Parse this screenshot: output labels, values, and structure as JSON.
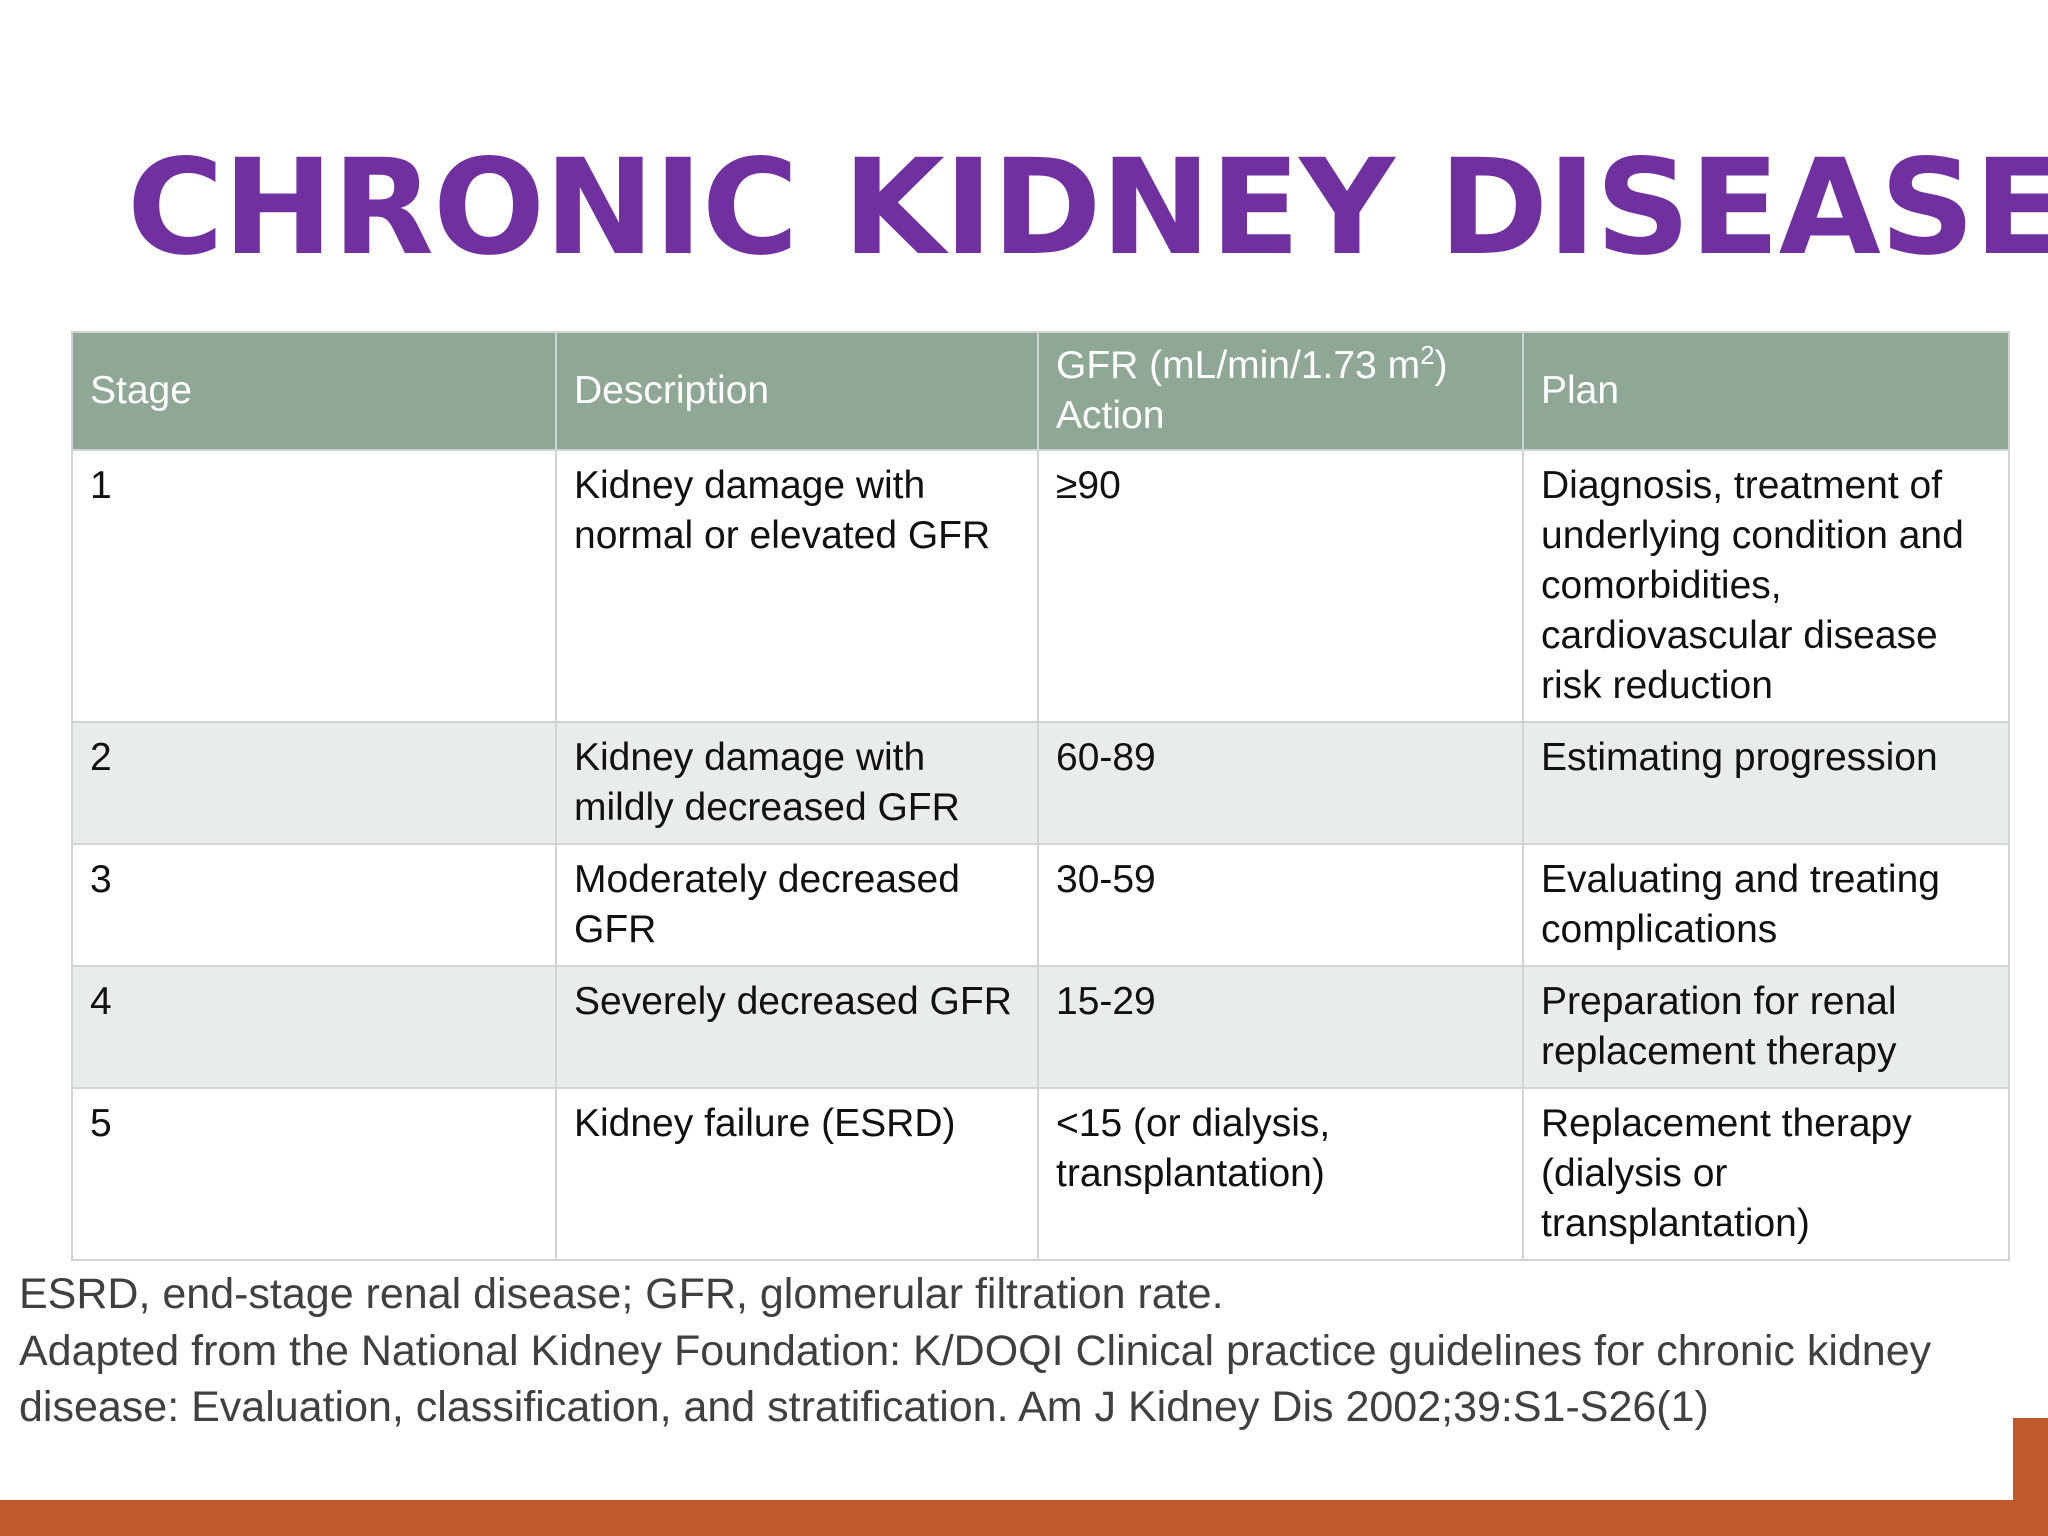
{
  "title": "CHRONIC KIDNEY DISEASE",
  "table": {
    "headers": {
      "stage": "Stage",
      "description": "Description",
      "gfr_prefix": "GFR (mL/min/1.73 m",
      "gfr_sup": "2",
      "gfr_suffix": ")",
      "gfr_action": "Action",
      "plan": "Plan"
    },
    "rows": [
      {
        "stage": "1",
        "description": "Kidney damage with normal or elevated GFR",
        "gfr": "≥90",
        "plan": "Diagnosis, treatment of underlying condition and comorbidities, cardiovascular disease risk reduction"
      },
      {
        "stage": "2",
        "description": "Kidney damage with mildly decreased GFR",
        "gfr": "60-89",
        "plan": "Estimating progression"
      },
      {
        "stage": "3",
        "description": "Moderately decreased GFR",
        "gfr": "30-59",
        "plan": "Evaluating and treating complications"
      },
      {
        "stage": "4",
        "description": "Severely decreased GFR",
        "gfr": "15-29",
        "plan": "Preparation for renal replacement therapy"
      },
      {
        "stage": "5",
        "description": "Kidney failure (ESRD)",
        "gfr": "<15 (or dialysis, transplantation)",
        "plan": "Replacement therapy (dialysis or transplantation)"
      }
    ]
  },
  "footnote": {
    "abbreviations": "ESRD, end-stage renal disease; GFR, glomerular filtration rate.",
    "source": "Adapted from the National Kidney Foundation: K/DOQI Clinical practice guidelines for chronic kidney disease: Evaluation, classification, and stratification. Am J Kidney Dis 2002;39:S1-S26(1)"
  },
  "colors": {
    "title": "#7030a0",
    "header_bg": "#8ea895",
    "alt_row_bg": "#e8ecea",
    "accent_bar": "#c0592b"
  }
}
